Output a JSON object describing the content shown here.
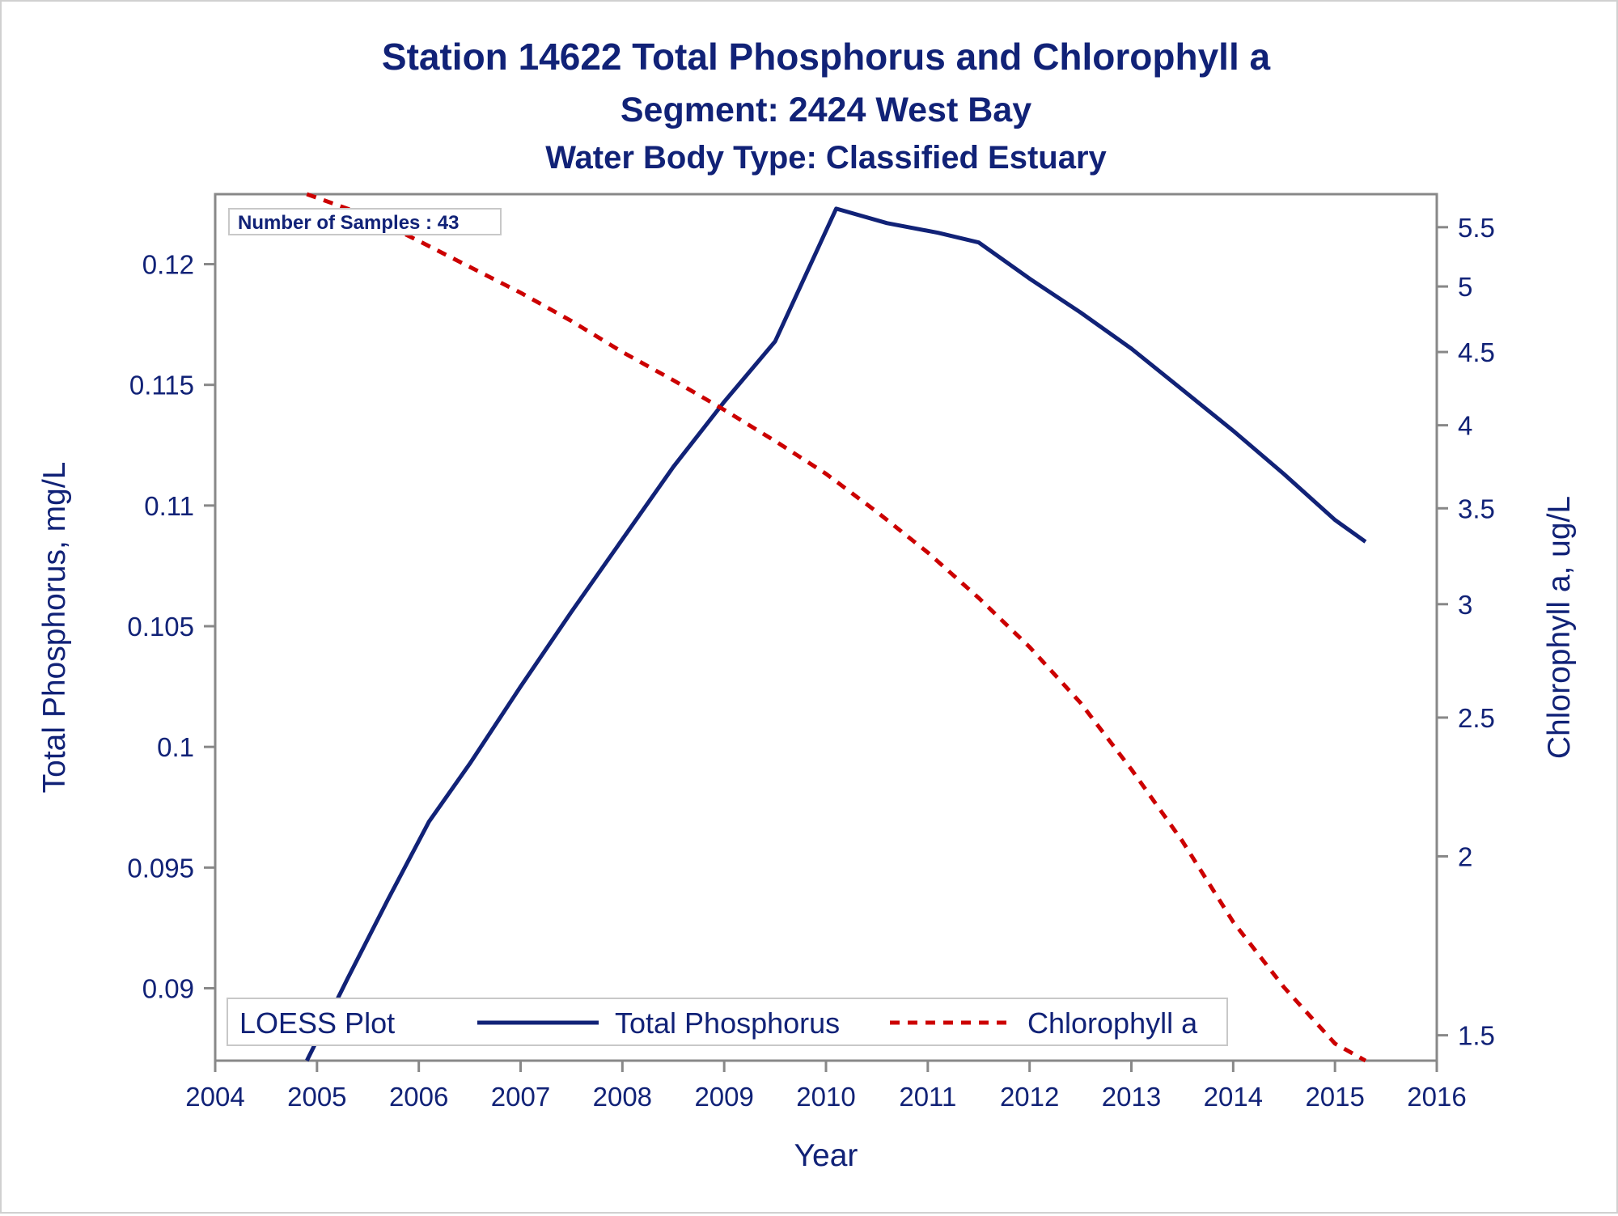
{
  "titles": {
    "line1": "Station 14622   Total Phosphorus and Chlorophyll a",
    "line2": "Segment: 2424  West Bay",
    "line3": "Water Body Type: Classified Estuary"
  },
  "inset": {
    "text": "Number of Samples : 43"
  },
  "legend": {
    "title": "LOESS Plot",
    "items": [
      {
        "label": "Total Phosphorus",
        "color": "#112277",
        "style": "solid"
      },
      {
        "label": "Chlorophyll a",
        "color": "#cc0000",
        "style": "dashed"
      }
    ]
  },
  "chart_data": {
    "type": "line",
    "xlabel": "Year",
    "ylabel": "Total Phosphorus, mg/L",
    "y2label": "Chlorophyll a, ug/L",
    "xlim": [
      2004,
      2016
    ],
    "xticks": [
      "2004",
      "2005",
      "2006",
      "2007",
      "2008",
      "2009",
      "2010",
      "2011",
      "2012",
      "2013",
      "2014",
      "2015",
      "2016"
    ],
    "ylim": [
      0.087,
      0.1229
    ],
    "yticks": [
      "0.09",
      "0.095",
      "0.1",
      "0.105",
      "0.11",
      "0.115",
      "0.12"
    ],
    "y2scale": "log",
    "y2lim": [
      1.44,
      5.8
    ],
    "y2ticks": [
      "1.5",
      "2",
      "2.5",
      "3",
      "3.5",
      "4",
      "4.5",
      "5",
      "5.5"
    ],
    "grid": false,
    "legend_position": "bottom-inside",
    "series": [
      {
        "name": "Total Phosphorus",
        "axis": "left",
        "color": "#112277",
        "x": [
          2004.9,
          2005.3,
          2005.7,
          2006.1,
          2006.5,
          2007.0,
          2007.5,
          2008.0,
          2008.5,
          2009.0,
          2009.5,
          2010.1,
          2010.6,
          2011.1,
          2011.5,
          2012.0,
          2012.5,
          2013.0,
          2013.5,
          2014.0,
          2014.5,
          2015.0,
          2015.3
        ],
        "values": [
          0.087,
          0.0904,
          0.0937,
          0.0969,
          0.0993,
          0.1025,
          0.1056,
          0.1086,
          0.1116,
          0.1143,
          0.1168,
          0.1223,
          0.1217,
          0.1213,
          0.1209,
          0.1194,
          0.118,
          0.1165,
          0.1148,
          0.1131,
          0.1113,
          0.1094,
          0.1085
        ]
      },
      {
        "name": "Chlorophyll a",
        "axis": "right",
        "color": "#cc0000",
        "x": [
          2004.9,
          2005.5,
          2006.0,
          2006.5,
          2007.0,
          2007.5,
          2008.0,
          2008.5,
          2009.0,
          2009.5,
          2010.0,
          2010.5,
          2011.0,
          2011.5,
          2012.0,
          2012.5,
          2013.0,
          2013.5,
          2014.0,
          2014.5,
          2015.0,
          2015.3
        ],
        "values": [
          5.8,
          5.6,
          5.38,
          5.16,
          4.95,
          4.73,
          4.5,
          4.3,
          4.1,
          3.9,
          3.7,
          3.48,
          3.26,
          3.03,
          2.8,
          2.56,
          2.3,
          2.05,
          1.8,
          1.62,
          1.48,
          1.44
        ]
      }
    ]
  }
}
